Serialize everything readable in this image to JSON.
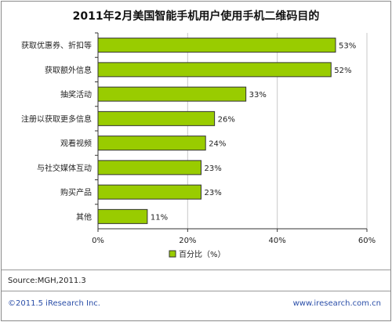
{
  "chart_data": {
    "type": "bar",
    "orientation": "horizontal",
    "title": "2011年2月美国智能手机用户使用手机二维码目的",
    "categories": [
      "获取优惠券、折扣等",
      "获取额外信息",
      "抽奖活动",
      "注册以获取更多信息",
      "观看视频",
      "与社交媒体互动",
      "购买产品",
      "其他"
    ],
    "values": [
      53,
      52,
      33,
      26,
      24,
      23,
      23,
      11
    ],
    "value_labels": [
      "53%",
      "52%",
      "33%",
      "26%",
      "24%",
      "23%",
      "23%",
      "11%"
    ],
    "xlim": [
      0,
      60
    ],
    "xticks": [
      "0%",
      "20%",
      "40%",
      "60%"
    ],
    "legend": {
      "label": "百分比（%）",
      "placement": "bottom"
    },
    "grid": true,
    "bar_color": "#99cc00"
  },
  "source": "Source:MGH,2011.3",
  "footer": {
    "left": "©2011.5 iResearch Inc.",
    "right": "www.iresearch.com.cn"
  }
}
